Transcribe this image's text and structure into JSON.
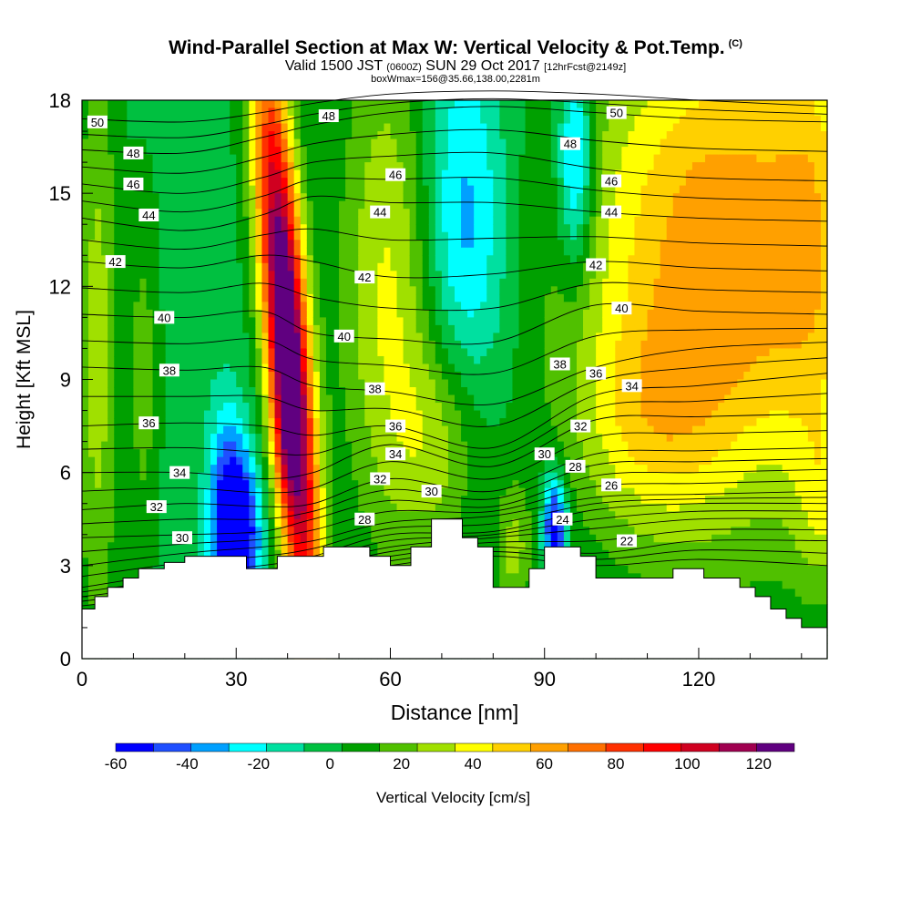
{
  "title": {
    "main": "Wind-Parallel Section at Max W: Vertical Velocity & Pot.Temp.",
    "main_tag": "(C)",
    "valid_a": "Valid 1500 JST",
    "valid_small1": "(0600Z)",
    "valid_b": "SUN 29 Oct 2017",
    "valid_small2": "[12hrFcst@2149z]",
    "box": "boxWmax=156@35.66,138.00,2281m"
  },
  "chart_data": {
    "type": "heatmap",
    "title": "Wind-Parallel Section at Max W: Vertical Velocity & Pot.Temp.",
    "xlabel": "Distance [nm]",
    "ylabel": "Height [Kft MSL]",
    "xlim": [
      0,
      145
    ],
    "ylim": [
      0,
      18
    ],
    "x_ticks": [
      0,
      30,
      60,
      90,
      120
    ],
    "y_ticks": [
      0,
      3,
      6,
      9,
      12,
      15,
      18
    ],
    "colorbar": {
      "label": "Vertical Velocity [cm/s]",
      "ticks": [
        -60,
        -40,
        -20,
        0,
        20,
        40,
        60,
        80,
        100,
        120
      ],
      "min": -60,
      "max": 130,
      "step": 10,
      "colors": [
        "#0000ff",
        "#1f4fff",
        "#00a0ff",
        "#00ffff",
        "#00e0a0",
        "#00c040",
        "#00a000",
        "#50c000",
        "#a0e000",
        "#ffff00",
        "#ffd000",
        "#ffa000",
        "#ff7000",
        "#ff3000",
        "#ff0000",
        "#d00020",
        "#a00050",
        "#600080"
      ]
    },
    "terrain": [
      [
        0,
        1.6
      ],
      [
        2.5,
        1.6
      ],
      [
        2.5,
        2.0
      ],
      [
        5,
        2.0
      ],
      [
        5,
        2.3
      ],
      [
        8,
        2.3
      ],
      [
        8,
        2.6
      ],
      [
        11,
        2.6
      ],
      [
        11,
        2.9
      ],
      [
        16,
        2.9
      ],
      [
        16,
        3.1
      ],
      [
        20,
        3.1
      ],
      [
        20,
        3.3
      ],
      [
        32,
        3.3
      ],
      [
        32,
        2.9
      ],
      [
        38,
        2.9
      ],
      [
        38,
        3.3
      ],
      [
        47,
        3.3
      ],
      [
        47,
        3.6
      ],
      [
        56,
        3.6
      ],
      [
        56,
        3.3
      ],
      [
        60,
        3.3
      ],
      [
        60,
        3.0
      ],
      [
        64,
        3.0
      ],
      [
        64,
        3.6
      ],
      [
        68,
        3.6
      ],
      [
        68,
        4.5
      ],
      [
        74,
        4.5
      ],
      [
        74,
        3.9
      ],
      [
        77,
        3.9
      ],
      [
        77,
        3.6
      ],
      [
        80,
        3.6
      ],
      [
        80,
        2.3
      ],
      [
        87,
        2.3
      ],
      [
        87,
        2.9
      ],
      [
        90,
        2.9
      ],
      [
        90,
        3.6
      ],
      [
        97,
        3.6
      ],
      [
        97,
        3.3
      ],
      [
        100,
        3.3
      ],
      [
        100,
        2.6
      ],
      [
        115,
        2.6
      ],
      [
        115,
        2.9
      ],
      [
        121,
        2.9
      ],
      [
        121,
        2.6
      ],
      [
        128,
        2.6
      ],
      [
        128,
        2.3
      ],
      [
        131,
        2.3
      ],
      [
        131,
        2.0
      ],
      [
        134,
        2.0
      ],
      [
        134,
        1.6
      ],
      [
        137,
        1.6
      ],
      [
        137,
        1.3
      ],
      [
        140,
        1.3
      ],
      [
        140,
        1.0
      ],
      [
        145,
        1.0
      ]
    ],
    "velocity_field": {
      "background": -3,
      "features": [
        {
          "x": 40,
          "z": 10.0,
          "sx": 3.0,
          "sz": 7.0,
          "amp": 135,
          "tilt": -0.45
        },
        {
          "x": 40,
          "z": 8.0,
          "sx": 2.0,
          "sz": 2.5,
          "amp": 20,
          "tilt": 0
        },
        {
          "x": 30,
          "z": 4.0,
          "sx": 3.2,
          "sz": 1.8,
          "amp": -75,
          "tilt": 0
        },
        {
          "x": 28,
          "z": 6.5,
          "sx": 2.5,
          "sz": 2.0,
          "amp": -20,
          "tilt": 0
        },
        {
          "x": 74,
          "z": 14.0,
          "sx": 6.0,
          "sz": 4.5,
          "amp": -35,
          "tilt": 0
        },
        {
          "x": 96,
          "z": 16.0,
          "sx": 2.5,
          "sz": 2.5,
          "amp": -45,
          "tilt": 0
        },
        {
          "x": 92,
          "z": 4.2,
          "sx": 1.6,
          "sz": 1.2,
          "amp": -65,
          "tilt": 0
        },
        {
          "x": 60,
          "z": 12.0,
          "sx": 7.0,
          "sz": 6.0,
          "amp": 35,
          "tilt": 0
        },
        {
          "x": 70,
          "z": 7.0,
          "sx": 6.0,
          "sz": 2.5,
          "amp": 25,
          "tilt": 0
        },
        {
          "x": 84,
          "z": 3.5,
          "sx": 2.5,
          "sz": 1.5,
          "amp": 25,
          "tilt": 0
        },
        {
          "x": 125,
          "z": 13.0,
          "sx": 20.0,
          "sz": 6.0,
          "amp": 62,
          "tilt": 0
        },
        {
          "x": 110,
          "z": 7.5,
          "sx": 10.0,
          "sz": 2.5,
          "amp": 22,
          "tilt": 0
        },
        {
          "x": 142,
          "z": 14.0,
          "sx": 5.0,
          "sz": 6.0,
          "amp": 15,
          "tilt": 0
        },
        {
          "x": 3,
          "z": 10.0,
          "sx": 3.0,
          "sz": 7.0,
          "amp": 28,
          "tilt": 0
        },
        {
          "x": 12,
          "z": 9.0,
          "sx": 2.0,
          "sz": 4.0,
          "amp": 18,
          "tilt": 0
        },
        {
          "x": 145,
          "z": 5.0,
          "sx": 4.0,
          "sz": 2.0,
          "amp": 20,
          "tilt": 0
        }
      ]
    },
    "contours": {
      "levels": [
        20,
        21,
        22,
        23,
        24,
        25,
        26,
        27,
        28,
        29,
        30,
        31,
        32,
        33,
        34,
        35,
        36,
        37,
        38,
        39,
        40,
        41,
        42,
        43,
        44,
        45,
        46,
        47,
        48,
        49,
        50
      ],
      "anchors_x": [
        0,
        20,
        35,
        45,
        60,
        80,
        100,
        120,
        145
      ],
      "lines": {
        "50": [
          17.4,
          17.3,
          17.6,
          17.9,
          18.2,
          18.3,
          18.2,
          18.0,
          17.8
        ],
        "48": [
          16.4,
          16.3,
          16.8,
          17.2,
          17.6,
          17.8,
          17.6,
          17.4,
          17.3
        ],
        "46": [
          15.3,
          15.0,
          15.5,
          16.0,
          16.2,
          16.3,
          15.8,
          15.5,
          15.4
        ],
        "44": [
          14.2,
          13.8,
          14.3,
          14.9,
          14.7,
          14.7,
          14.4,
          14.2,
          14.1
        ],
        "42": [
          12.8,
          12.6,
          13.0,
          12.8,
          12.3,
          12.4,
          12.8,
          12.6,
          12.5
        ],
        "40": [
          11.1,
          11.0,
          11.2,
          10.5,
          10.3,
          10.2,
          11.4,
          11.2,
          11.1
        ],
        "38": [
          9.4,
          9.3,
          9.4,
          8.8,
          8.6,
          8.2,
          9.4,
          10.0,
          10.2
        ],
        "36": [
          7.5,
          7.6,
          7.5,
          7.2,
          7.5,
          6.8,
          8.5,
          8.8,
          9.2
        ],
        "34": [
          6.0,
          6.0,
          5.8,
          6.0,
          6.9,
          6.2,
          7.7,
          7.8,
          7.9
        ],
        "32": [
          4.8,
          5.0,
          4.9,
          5.0,
          5.8,
          5.4,
          6.6,
          6.7,
          6.8
        ],
        "30": [
          3.9,
          4.0,
          4.1,
          4.5,
          5.1,
          4.9,
          5.9,
          6.0,
          6.1
        ],
        "28": [
          3.0,
          3.4,
          3.6,
          3.8,
          4.4,
          4.6,
          5.2,
          5.3,
          5.4
        ],
        "26": [
          2.3,
          2.8,
          3.0,
          3.3,
          4.0,
          4.1,
          4.8,
          5.0,
          5.0
        ],
        "24": [
          2.0,
          2.4,
          2.7,
          3.0,
          3.6,
          3.9,
          4.2,
          4.5,
          4.5
        ],
        "22": [
          1.7,
          2.1,
          2.4,
          2.7,
          3.3,
          3.6,
          3.4,
          3.8,
          3.8
        ],
        "20": [
          1.4,
          1.8,
          2.1,
          2.4,
          3.0,
          3.3,
          3.0,
          3.2,
          3.0
        ]
      },
      "labels": [
        {
          "text": "50",
          "x": 3,
          "y": 17.3
        },
        {
          "text": "48",
          "x": 10,
          "y": 16.3
        },
        {
          "text": "46",
          "x": 10,
          "y": 15.3
        },
        {
          "text": "44",
          "x": 13,
          "y": 14.3
        },
        {
          "text": "42",
          "x": 6.5,
          "y": 12.8
        },
        {
          "text": "40",
          "x": 16,
          "y": 11.0
        },
        {
          "text": "38",
          "x": 17,
          "y": 9.3
        },
        {
          "text": "36",
          "x": 13,
          "y": 7.6
        },
        {
          "text": "34",
          "x": 19,
          "y": 6.0
        },
        {
          "text": "32",
          "x": 14.5,
          "y": 4.9
        },
        {
          "text": "30",
          "x": 19.5,
          "y": 3.9
        },
        {
          "text": "48",
          "x": 48,
          "y": 17.5
        },
        {
          "text": "46",
          "x": 61,
          "y": 15.6
        },
        {
          "text": "44",
          "x": 58,
          "y": 14.4
        },
        {
          "text": "42",
          "x": 55,
          "y": 12.3
        },
        {
          "text": "40",
          "x": 51,
          "y": 10.4
        },
        {
          "text": "38",
          "x": 57,
          "y": 8.7
        },
        {
          "text": "36",
          "x": 61,
          "y": 7.5
        },
        {
          "text": "34",
          "x": 61,
          "y": 6.6
        },
        {
          "text": "32",
          "x": 58,
          "y": 5.8
        },
        {
          "text": "28",
          "x": 55,
          "y": 4.5
        },
        {
          "text": "30",
          "x": 68,
          "y": 5.4
        },
        {
          "text": "50",
          "x": 104,
          "y": 17.6
        },
        {
          "text": "48",
          "x": 95,
          "y": 16.6
        },
        {
          "text": "46",
          "x": 103,
          "y": 15.4
        },
        {
          "text": "44",
          "x": 103,
          "y": 14.4
        },
        {
          "text": "42",
          "x": 100,
          "y": 12.7
        },
        {
          "text": "40",
          "x": 105,
          "y": 11.3
        },
        {
          "text": "38",
          "x": 93,
          "y": 9.5
        },
        {
          "text": "36",
          "x": 100,
          "y": 9.2
        },
        {
          "text": "34",
          "x": 107,
          "y": 8.8
        },
        {
          "text": "32",
          "x": 97,
          "y": 7.5
        },
        {
          "text": "30",
          "x": 90,
          "y": 6.6
        },
        {
          "text": "28",
          "x": 96,
          "y": 6.2
        },
        {
          "text": "26",
          "x": 103,
          "y": 5.6
        },
        {
          "text": "24",
          "x": 93.5,
          "y": 4.5
        },
        {
          "text": "22",
          "x": 106,
          "y": 3.8
        }
      ]
    }
  }
}
